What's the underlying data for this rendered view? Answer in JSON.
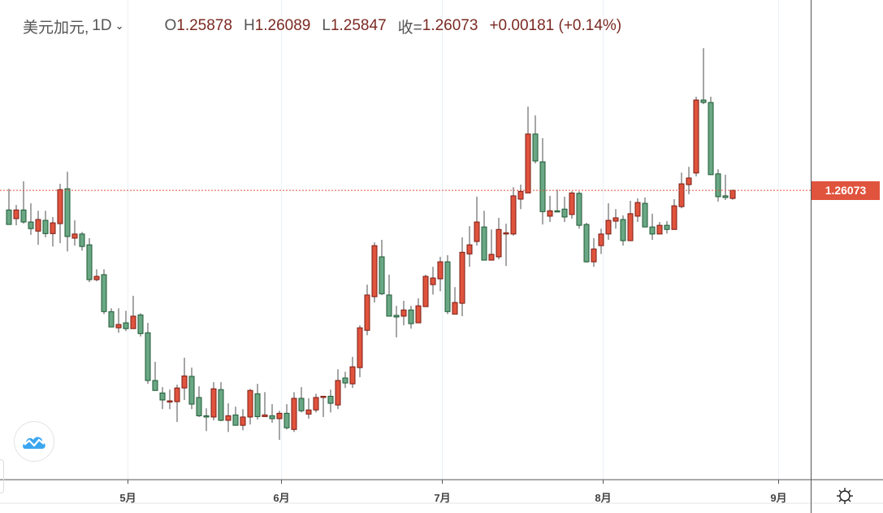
{
  "header": {
    "symbol": "美元加元,",
    "interval": "1D",
    "open_label": "O",
    "open": "1.25878",
    "high_label": "H",
    "high": "1.26089",
    "low_label": "L",
    "low": "1.25847",
    "close_label": "收=",
    "close": "1.26073",
    "change": "+0.00181 (+0.14%)"
  },
  "price_label": "1.26073",
  "colors": {
    "up": "#e0533d",
    "up_border": "#7a1c14",
    "down": "#6aa784",
    "down_border": "#1e5a35",
    "wick": "#777777",
    "price_line": "#e0533d"
  },
  "icons": {
    "logo": "tradingview-cloud-icon",
    "settings": "gear-icon"
  },
  "chart_data": {
    "type": "candlestick",
    "title": "美元加元, 1D",
    "ylim": [
      1.191,
      1.3066
    ],
    "last_price": 1.26073,
    "x_ticks": [
      {
        "label": "5月",
        "index": 16.2
      },
      {
        "label": "6月",
        "index": 37.2
      },
      {
        "label": "7月",
        "index": 59.2
      },
      {
        "label": "8月",
        "index": 81.2
      },
      {
        "label": "9月",
        "index": 105.2
      }
    ],
    "ohlc": [
      [
        1.256,
        1.2611,
        1.2525,
        1.2525
      ],
      [
        1.2539,
        1.2572,
        1.2523,
        1.256
      ],
      [
        1.256,
        1.2629,
        1.2527,
        1.2531
      ],
      [
        1.2531,
        1.2576,
        1.25,
        1.2515
      ],
      [
        1.2509,
        1.2558,
        1.2476,
        1.2537
      ],
      [
        1.2535,
        1.2558,
        1.2494,
        1.2503
      ],
      [
        1.2503,
        1.2543,
        1.2472,
        1.2529
      ],
      [
        1.2527,
        1.2623,
        1.248,
        1.2609
      ],
      [
        1.2611,
        1.2652,
        1.246,
        1.2496
      ],
      [
        1.2492,
        1.2535,
        1.2474,
        1.2502
      ],
      [
        1.2502,
        1.2507,
        1.2462,
        1.2472
      ],
      [
        1.2476,
        1.2492,
        1.2386,
        1.2392
      ],
      [
        1.2392,
        1.2417,
        1.2388,
        1.24
      ],
      [
        1.2404,
        1.2417,
        1.2309,
        1.2315
      ],
      [
        1.2315,
        1.2323,
        1.2278,
        1.2278
      ],
      [
        1.2276,
        1.2323,
        1.2264,
        1.2284
      ],
      [
        1.2288,
        1.2317,
        1.2268,
        1.2274
      ],
      [
        1.2274,
        1.2353,
        1.2274,
        1.2304
      ],
      [
        1.2307,
        1.2311,
        1.2255,
        1.2262
      ],
      [
        1.2264,
        1.2288,
        1.2141,
        1.2149
      ],
      [
        1.2149,
        1.2194,
        1.2125,
        1.2125
      ],
      [
        1.2119,
        1.2133,
        1.208,
        1.2102
      ],
      [
        1.2098,
        1.2127,
        1.208,
        1.21
      ],
      [
        1.2098,
        1.2139,
        1.2049,
        1.2131
      ],
      [
        1.2131,
        1.2204,
        1.2102,
        1.216
      ],
      [
        1.2159,
        1.218,
        1.208,
        1.2092
      ],
      [
        1.2108,
        1.2135,
        1.2061,
        1.2064
      ],
      [
        1.2064,
        1.2082,
        1.2027,
        1.2061
      ],
      [
        1.2061,
        1.2145,
        1.2053,
        1.2129
      ],
      [
        1.2127,
        1.2145,
        1.2051,
        1.2053
      ],
      [
        1.2053,
        1.2094,
        1.2025,
        1.2064
      ],
      [
        1.2066,
        1.2086,
        1.2041,
        1.2041
      ],
      [
        1.2041,
        1.208,
        1.2029,
        1.2061
      ],
      [
        1.2061,
        1.2129,
        1.2043,
        1.2125
      ],
      [
        1.2117,
        1.2141,
        1.2055,
        1.2062
      ],
      [
        1.2062,
        1.2121,
        1.2062,
        1.2066
      ],
      [
        1.2064,
        1.2092,
        1.2047,
        1.2057
      ],
      [
        1.2057,
        1.2076,
        1.2006,
        1.207
      ],
      [
        1.207,
        1.2092,
        1.2031,
        1.2035
      ],
      [
        1.2031,
        1.2121,
        1.2025,
        1.2106
      ],
      [
        1.2106,
        1.2133,
        1.2072,
        1.2076
      ],
      [
        1.2068,
        1.2106,
        1.2057,
        1.2078
      ],
      [
        1.2078,
        1.2117,
        1.2072,
        1.2108
      ],
      [
        1.2108,
        1.2111,
        1.2061,
        1.2111
      ],
      [
        1.2111,
        1.2127,
        1.2072,
        1.2094
      ],
      [
        1.209,
        1.2176,
        1.208,
        1.2149
      ],
      [
        1.2155,
        1.217,
        1.2131,
        1.2143
      ],
      [
        1.2141,
        1.2206,
        1.2131,
        1.2182
      ],
      [
        1.218,
        1.2282,
        1.2157,
        1.2276
      ],
      [
        1.227,
        1.238,
        1.2258,
        1.2355
      ],
      [
        1.2351,
        1.2482,
        1.2337,
        1.2474
      ],
      [
        1.2447,
        1.2488,
        1.2355,
        1.2358
      ],
      [
        1.2355,
        1.2404,
        1.2304,
        1.2304
      ],
      [
        1.2306,
        1.2329,
        1.2253,
        1.2302
      ],
      [
        1.2304,
        1.2341,
        1.2282,
        1.2319
      ],
      [
        1.2319,
        1.2329,
        1.2274,
        1.2286
      ],
      [
        1.2288,
        1.2347,
        1.2288,
        1.2329
      ],
      [
        1.2327,
        1.2404,
        1.2327,
        1.24
      ],
      [
        1.238,
        1.2423,
        1.2356,
        1.2396
      ],
      [
        1.2394,
        1.2447,
        1.2364,
        1.2435
      ],
      [
        1.2435,
        1.2451,
        1.2309,
        1.2315
      ],
      [
        1.2309,
        1.2374,
        1.2309,
        1.2337
      ],
      [
        1.2335,
        1.2494,
        1.2304,
        1.2458
      ],
      [
        1.2454,
        1.2521,
        1.2423,
        1.2476
      ],
      [
        1.2484,
        1.2592,
        1.2474,
        1.2531
      ],
      [
        1.2519,
        1.2558,
        1.2439,
        1.2439
      ],
      [
        1.2439,
        1.2513,
        1.2439,
        1.2453
      ],
      [
        1.2447,
        1.2541,
        1.2441,
        1.2513
      ],
      [
        1.2503,
        1.2527,
        1.2425,
        1.2505
      ],
      [
        1.2502,
        1.2615,
        1.2498,
        1.2594
      ],
      [
        1.2586,
        1.2621,
        1.2562,
        1.2605
      ],
      [
        1.2601,
        1.2809,
        1.2601,
        1.2743
      ],
      [
        1.2743,
        1.2788,
        1.2672,
        1.2678
      ],
      [
        1.2676,
        1.2733,
        1.2525,
        1.2556
      ],
      [
        1.2545,
        1.2594,
        1.2531,
        1.2558
      ],
      [
        1.2558,
        1.2609,
        1.2556,
        1.2556
      ],
      [
        1.2562,
        1.2592,
        1.2531,
        1.2543
      ],
      [
        1.2549,
        1.2605,
        1.2539,
        1.2601
      ],
      [
        1.26,
        1.2605,
        1.2515,
        1.2523
      ],
      [
        1.2525,
        1.2529,
        1.2433,
        1.2435
      ],
      [
        1.2435,
        1.2492,
        1.2423,
        1.2466
      ],
      [
        1.2474,
        1.2515,
        1.2454,
        1.2502
      ],
      [
        1.2502,
        1.2576,
        1.2488,
        1.2535
      ],
      [
        1.2533,
        1.2562,
        1.2515,
        1.2541
      ],
      [
        1.2537,
        1.2547,
        1.2474,
        1.2486
      ],
      [
        1.2486,
        1.2582,
        1.2486,
        1.2551
      ],
      [
        1.2545,
        1.2588,
        1.2531,
        1.2578
      ],
      [
        1.2576,
        1.259,
        1.2519,
        1.2519
      ],
      [
        1.2519,
        1.2551,
        1.2488,
        1.2502
      ],
      [
        1.2502,
        1.2531,
        1.2502,
        1.2523
      ],
      [
        1.2523,
        1.2533,
        1.2503,
        1.2513
      ],
      [
        1.2513,
        1.2586,
        1.2513,
        1.257
      ],
      [
        1.2568,
        1.265,
        1.2564,
        1.2623
      ],
      [
        1.2621,
        1.2664,
        1.2598,
        1.2637
      ],
      [
        1.2649,
        1.2833,
        1.2641,
        1.2825
      ],
      [
        1.2825,
        1.295,
        1.2815,
        1.2819
      ],
      [
        1.2819,
        1.2833,
        1.2645,
        1.2645
      ],
      [
        1.2647,
        1.2658,
        1.258,
        1.2592
      ],
      [
        1.2594,
        1.2645,
        1.2584,
        1.259
      ],
      [
        1.25878,
        1.26089,
        1.25847,
        1.26073
      ]
    ]
  }
}
